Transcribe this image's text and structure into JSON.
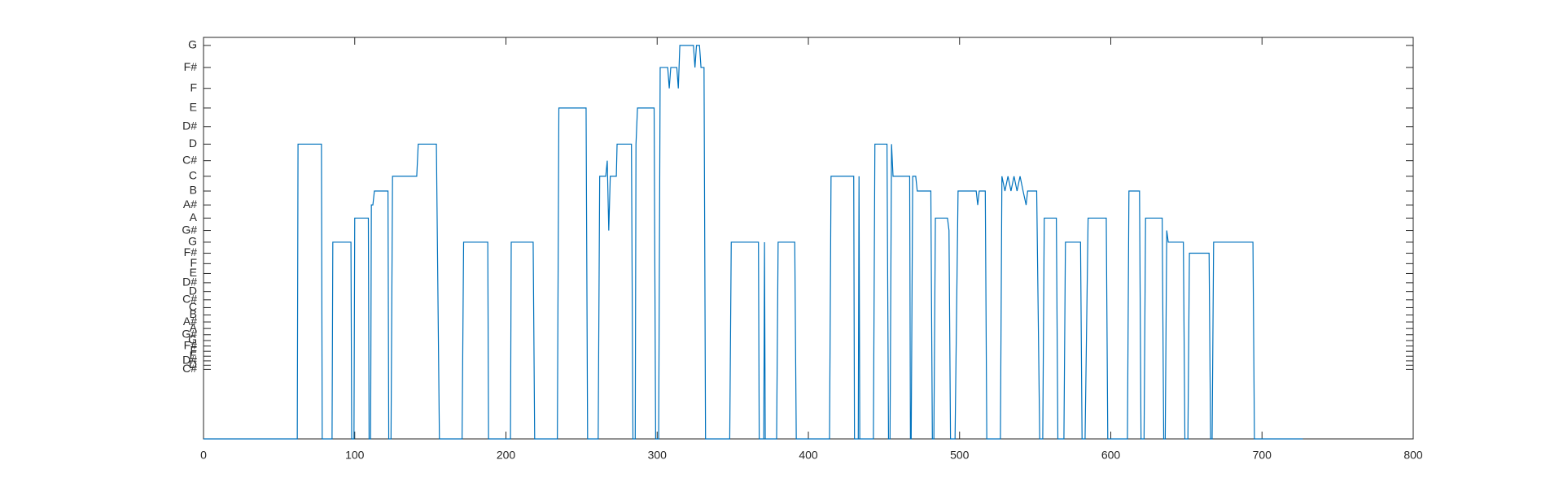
{
  "chart_data": {
    "type": "line",
    "xlim": [
      0,
      800
    ],
    "xticks": [
      0,
      100,
      200,
      300,
      400,
      500,
      600,
      700,
      800
    ],
    "ylim": [
      0,
      800
    ],
    "yticks": [
      {
        "value": 138.59,
        "label": "C#"
      },
      {
        "value": 146.83,
        "label": "D"
      },
      {
        "value": 155.56,
        "label": "D#"
      },
      {
        "value": 164.81,
        "label": "E"
      },
      {
        "value": 174.61,
        "label": "F"
      },
      {
        "value": 185.0,
        "label": "F#"
      },
      {
        "value": 196.0,
        "label": "G"
      },
      {
        "value": 207.65,
        "label": "G#"
      },
      {
        "value": 220.0,
        "label": "A"
      },
      {
        "value": 233.08,
        "label": "A#"
      },
      {
        "value": 246.94,
        "label": "B"
      },
      {
        "value": 261.63,
        "label": "C"
      },
      {
        "value": 277.18,
        "label": "C#"
      },
      {
        "value": 293.66,
        "label": "D"
      },
      {
        "value": 311.13,
        "label": "D#"
      },
      {
        "value": 329.63,
        "label": "E"
      },
      {
        "value": 349.23,
        "label": "F"
      },
      {
        "value": 369.99,
        "label": "F#"
      },
      {
        "value": 392.0,
        "label": "G"
      },
      {
        "value": 415.3,
        "label": "G#"
      },
      {
        "value": 440.0,
        "label": "A"
      },
      {
        "value": 466.16,
        "label": "A#"
      },
      {
        "value": 493.88,
        "label": "B"
      },
      {
        "value": 523.25,
        "label": "C"
      },
      {
        "value": 554.37,
        "label": "C#"
      },
      {
        "value": 587.33,
        "label": "D"
      },
      {
        "value": 622.25,
        "label": "D#"
      },
      {
        "value": 659.26,
        "label": "E"
      },
      {
        "value": 698.46,
        "label": "F"
      },
      {
        "value": 739.99,
        "label": "F#"
      },
      {
        "value": 783.99,
        "label": "G"
      }
    ],
    "x": [
      0,
      62,
      62.5,
      78,
      78.5,
      85,
      85.5,
      97.5,
      98,
      99.5,
      100,
      109,
      109.5,
      110.5,
      111,
      112,
      113,
      122,
      122.5,
      124,
      125,
      141,
      142,
      154,
      156,
      171,
      172,
      188,
      188.5,
      203,
      203.5,
      218,
      219,
      234,
      235,
      253,
      254,
      261,
      262,
      266,
      267,
      268,
      269,
      273,
      273.5,
      283,
      284,
      285.5,
      286,
      287,
      298,
      299,
      301,
      302,
      307,
      308,
      309,
      313,
      314,
      315,
      324,
      325,
      326,
      328,
      329,
      331,
      332,
      348,
      349,
      367,
      367.5,
      370.5,
      371,
      371.5,
      379,
      380,
      391,
      392,
      414,
      415,
      430,
      430.5,
      433,
      433.5,
      434,
      443,
      444,
      452,
      453,
      454,
      455,
      456,
      467,
      467.5,
      468,
      469,
      471,
      472,
      481,
      482,
      483,
      484,
      492,
      493,
      494,
      497,
      499,
      511,
      512,
      513,
      517,
      518,
      527,
      528,
      530,
      532,
      534,
      536,
      538,
      540,
      542,
      544,
      545,
      551,
      553,
      555,
      556,
      564,
      565,
      569,
      570,
      580,
      581,
      583,
      585,
      597,
      598,
      611,
      612,
      619,
      620,
      622,
      623,
      634,
      635,
      636,
      637,
      638,
      648,
      649,
      651,
      652,
      665,
      666,
      667,
      668,
      694,
      695,
      727
    ],
    "series": [
      {
        "color": "#0072bd",
        "values": [
          0,
          0,
          587.33,
          587.33,
          0,
          0,
          392,
          392,
          0,
          0,
          440,
          440,
          0,
          0,
          466.16,
          466.16,
          493.88,
          493.88,
          0,
          0,
          523.25,
          523.25,
          587.33,
          587.33,
          0,
          0,
          392,
          392,
          0,
          0,
          392,
          392,
          0,
          0,
          659.26,
          659.26,
          0,
          0,
          523.25,
          523.25,
          554.37,
          415.3,
          523.25,
          523.25,
          587.33,
          587.33,
          0,
          0,
          587.33,
          659.26,
          659.26,
          0,
          0,
          739.99,
          739.99,
          698.46,
          739.99,
          739.99,
          698.46,
          783.99,
          783.99,
          739.99,
          783.99,
          783.99,
          739.99,
          739.99,
          0,
          0,
          392,
          392,
          0,
          0,
          392,
          0,
          0,
          392,
          392,
          0,
          0,
          523.25,
          523.25,
          0,
          0,
          523.25,
          0,
          0,
          587.33,
          587.33,
          0,
          0,
          587.33,
          523.25,
          523.25,
          0,
          0,
          523.25,
          523.25,
          493.88,
          493.88,
          0,
          0,
          440,
          440,
          415.3,
          0,
          0,
          493.88,
          493.88,
          466.16,
          493.88,
          493.88,
          0,
          0,
          523.25,
          493.88,
          523.25,
          493.88,
          523.25,
          493.88,
          523.25,
          493.88,
          466.16,
          493.88,
          493.88,
          0,
          0,
          440,
          440,
          0,
          0,
          392,
          392,
          0,
          0,
          440,
          440,
          0,
          0,
          493.88,
          493.88,
          0,
          0,
          440,
          440,
          0,
          0,
          415.3,
          392,
          392,
          0,
          0,
          369.99,
          369.99,
          0,
          0,
          392,
          392,
          0,
          0
        ]
      }
    ]
  }
}
